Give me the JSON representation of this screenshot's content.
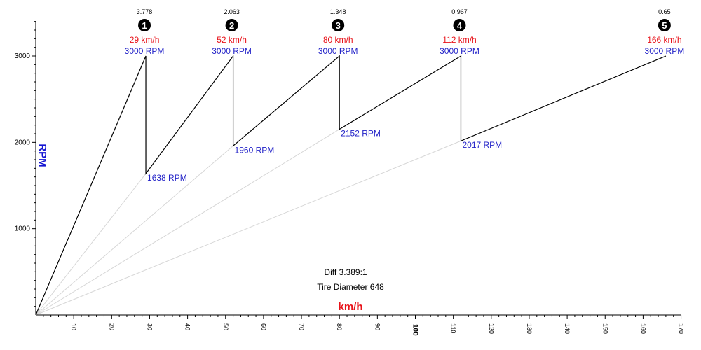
{
  "chart_data": {
    "type": "line",
    "xlabel": "km/h",
    "ylabel": "RPM",
    "xlim": [
      0,
      170
    ],
    "ylim": [
      0,
      3400
    ],
    "x_ticks": [
      10,
      20,
      30,
      40,
      50,
      60,
      70,
      80,
      90,
      100,
      110,
      120,
      130,
      140,
      150,
      160,
      170
    ],
    "x_major_tick": 100,
    "y_ticks": [
      1000,
      2000,
      3000
    ],
    "shift_rpm": 3000,
    "gears": [
      {
        "number": "1",
        "ratio": "3.778",
        "speed": 29,
        "speed_label": "29 km/h",
        "rpm_label": "3000 RPM",
        "drop_rpm": 1638,
        "drop_label": "1638 RPM"
      },
      {
        "number": "2",
        "ratio": "2.063",
        "speed": 52,
        "speed_label": "52 km/h",
        "rpm_label": "3000 RPM",
        "drop_rpm": 1960,
        "drop_label": "1960 RPM"
      },
      {
        "number": "3",
        "ratio": "1.348",
        "speed": 80,
        "speed_label": "80 km/h",
        "rpm_label": "3000 RPM",
        "drop_rpm": 2152,
        "drop_label": "2152 RPM"
      },
      {
        "number": "4",
        "ratio": "0.967",
        "speed": 112,
        "speed_label": "112 km/h",
        "rpm_label": "3000 RPM",
        "drop_rpm": 2017,
        "drop_label": "2017 RPM"
      },
      {
        "number": "5",
        "ratio": "0.65",
        "speed": 166,
        "speed_label": "166 km/h",
        "rpm_label": "3000 RPM",
        "drop_rpm": null,
        "drop_label": ""
      }
    ],
    "annotations": [
      "Diff 3.389:1",
      "Tire Diameter 648"
    ],
    "colors": {
      "speed": "#e8131a",
      "rpm": "#2323c8",
      "line": "#000000",
      "guide": "#d6d6d6",
      "axis_x_title": "#e8131a",
      "axis_y_title": "#1414d2"
    }
  }
}
